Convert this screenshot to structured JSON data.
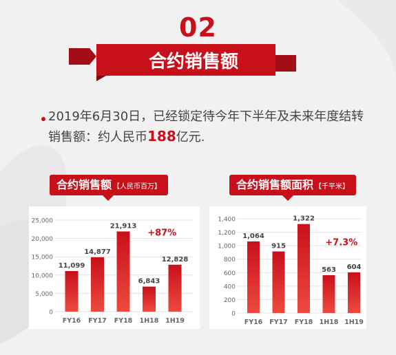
{
  "header": {
    "section_number": "02",
    "title": "合约销售额"
  },
  "bullet": {
    "text_before": "2019年6月30日，已经锁定待今年下半年及未来年度结转销售额：约人民币",
    "highlight": "188",
    "text_after": "亿元."
  },
  "colors": {
    "accent": "#c8101b",
    "bar_top": "#c8101b",
    "bar_bottom": "#e8443b"
  },
  "chart_data": [
    {
      "type": "bar",
      "title": "合约销售额",
      "unit": "【人民币百万】",
      "categories": [
        "FY16",
        "FY17",
        "FY18",
        "1H18",
        "1H19"
      ],
      "values": [
        11099,
        14877,
        21913,
        6843,
        12828
      ],
      "value_labels": [
        "11,099",
        "14,877",
        "21,913",
        "6,843",
        "12,828"
      ],
      "ylim": [
        0,
        25000
      ],
      "yticks": [
        0,
        5000,
        10000,
        15000,
        20000,
        25000
      ],
      "ytick_labels": [
        "0",
        "5,000",
        "10,000",
        "15,000",
        "20,000",
        "25,000"
      ],
      "annotation": {
        "text": "+87%",
        "x_between": [
          3,
          4
        ],
        "y": 21500
      },
      "grid": true
    },
    {
      "type": "bar",
      "title": "合约销售额面积",
      "unit": "【千平米】",
      "categories": [
        "FY16",
        "FY17",
        "FY18",
        "1H18",
        "1H19"
      ],
      "values": [
        1064,
        915,
        1322,
        563,
        604
      ],
      "value_labels": [
        "1,064",
        "915",
        "1,322",
        "563",
        "604"
      ],
      "ylim": [
        0,
        1400
      ],
      "yticks": [
        0,
        200,
        400,
        600,
        800,
        1000,
        1200,
        1400
      ],
      "ytick_labels": [
        "0",
        "200",
        "400",
        "600",
        "800",
        "1,000",
        "1,200",
        "1,400"
      ],
      "annotation": {
        "text": "+7.3%",
        "x_between": [
          3,
          4
        ],
        "y": 1050
      },
      "grid": true
    }
  ]
}
